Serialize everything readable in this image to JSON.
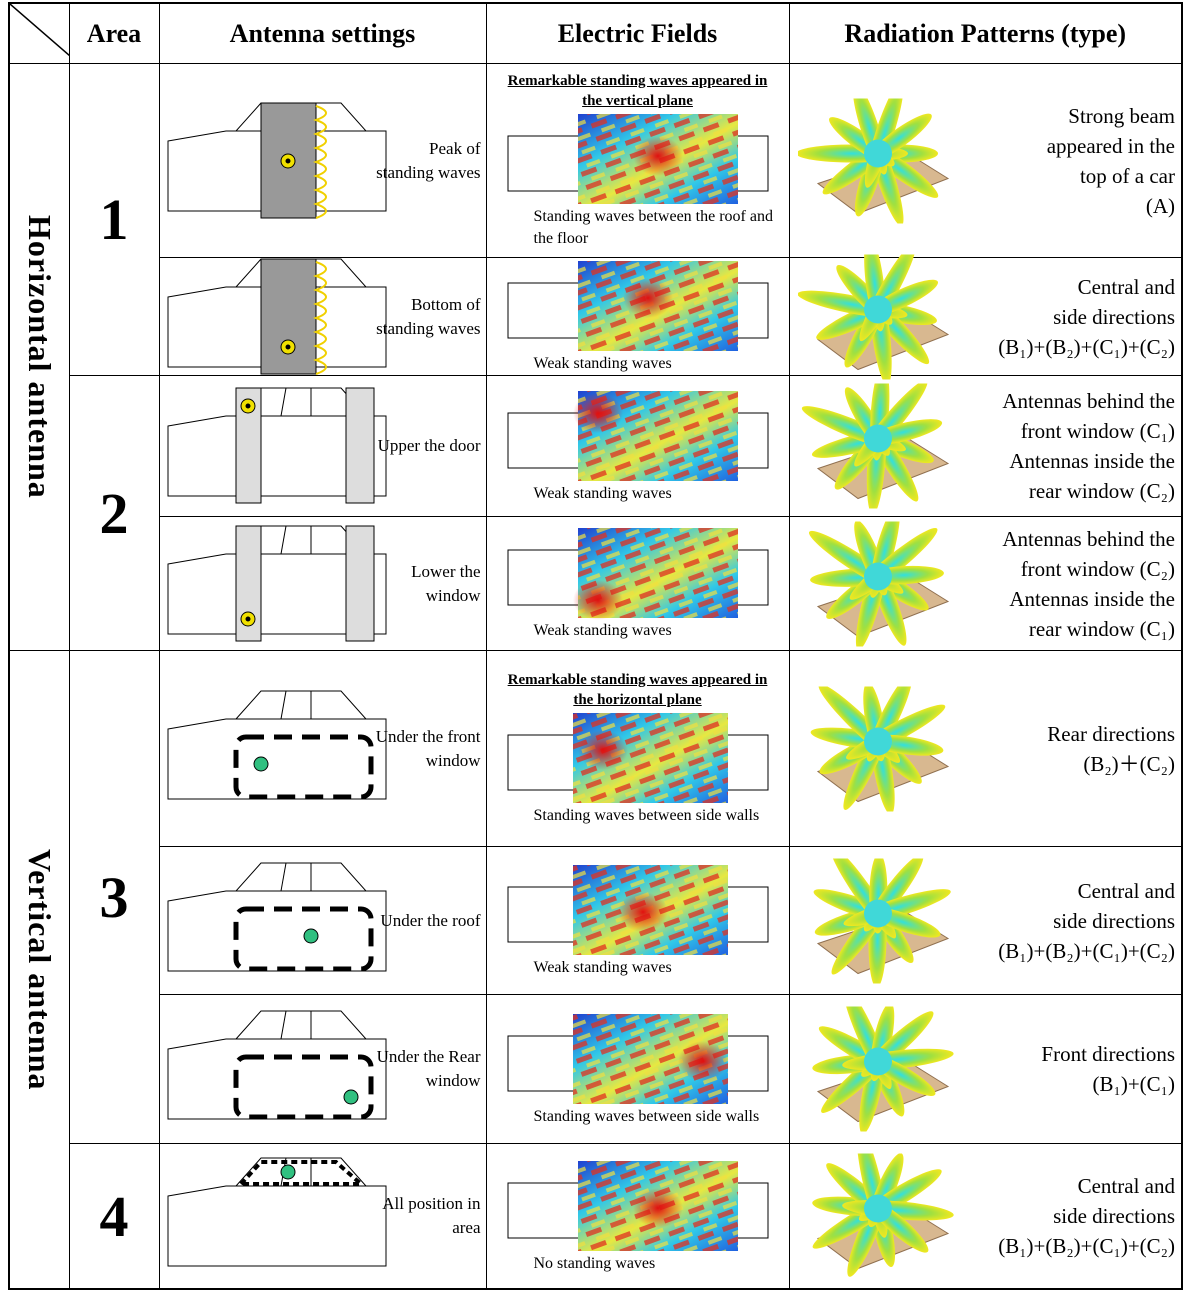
{
  "table": {
    "header": [
      "Area",
      "Antenna settings",
      "Electric Fields",
      "Radiation Patterns (type)"
    ],
    "groups": [
      "Horizontal antenna",
      "Vertical antenna"
    ],
    "areas": [
      "1",
      "2",
      "3",
      "4"
    ],
    "rows": [
      {
        "setting": "Peak of standing waves",
        "note": "Remarkable standing waves appeared in the vertical plane",
        "caption": "Standing waves between the roof and the floor",
        "pattern": [
          "Strong beam",
          "appeared in the",
          "top of a car",
          "(A)"
        ]
      },
      {
        "setting": "Bottom of standing waves",
        "caption": "Weak standing waves",
        "pattern": [
          "Central and",
          "side directions",
          "(B₁)+(B₂)+(C₁)+(C₂)"
        ]
      },
      {
        "setting": "Upper the door",
        "caption": "Weak standing waves",
        "pattern": [
          "Antennas behind the",
          "front window (C₁)",
          "Antennas inside the",
          "rear window (C₂)"
        ]
      },
      {
        "setting": "Lower the window",
        "caption": "Weak standing waves",
        "pattern": [
          "Antennas behind the",
          "front window (C₂)",
          "Antennas inside the",
          "rear window (C₁)"
        ]
      },
      {
        "setting": "Under the front window",
        "note": "Remarkable standing waves appeared in the horizontal plane",
        "caption": "Standing waves between side walls",
        "pattern": [
          "Rear directions",
          "(B₂)＋(C₂)"
        ]
      },
      {
        "setting": "Under the roof",
        "caption": "Weak standing waves",
        "pattern": [
          "Central and",
          "side directions",
          "(B₁)+(B₂)+(C₁)+(C₂)"
        ]
      },
      {
        "setting": "Under the Rear window",
        "caption": "Standing waves between side walls",
        "pattern": [
          "Front directions",
          "(B₁)+(C₁)"
        ]
      },
      {
        "setting": "All position in area",
        "caption": "No standing waves",
        "pattern": [
          "Central and",
          "side directions",
          "(B₁)+(B₂)+(C₁)+(C₂)"
        ]
      }
    ]
  }
}
